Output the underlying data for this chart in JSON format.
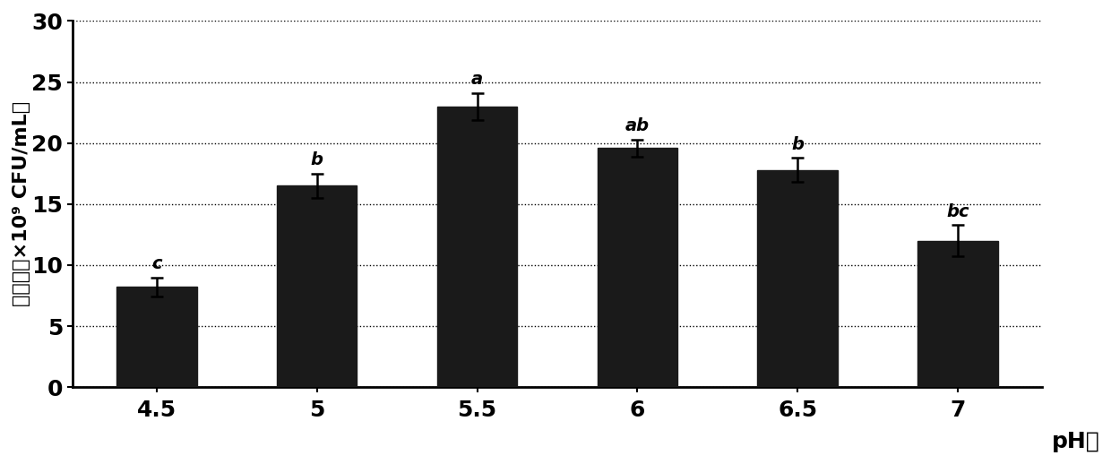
{
  "categories": [
    "4.5",
    "5",
    "5.5",
    "6",
    "6.5",
    "7"
  ],
  "values": [
    8.2,
    16.5,
    23.0,
    19.6,
    17.8,
    12.0
  ],
  "errors": [
    0.8,
    1.0,
    1.1,
    0.7,
    1.0,
    1.3
  ],
  "labels": [
    "c",
    "b",
    "a",
    "ab",
    "b",
    "bc"
  ],
  "bar_color": "#1a1a1a",
  "bar_width": 0.5,
  "xlabel": "pH値",
  "ylabel_line1": "活菌数（×10⁹ CFU/mL）",
  "ylim": [
    0,
    30
  ],
  "yticks": [
    0,
    5,
    10,
    15,
    20,
    25,
    30
  ],
  "grid_color": "#000000",
  "grid_style": "dotted",
  "background_color": "#ffffff",
  "axis_fontsize": 18,
  "tick_fontsize": 18,
  "label_fontsize": 14,
  "error_capsize": 5,
  "error_linewidth": 1.8
}
